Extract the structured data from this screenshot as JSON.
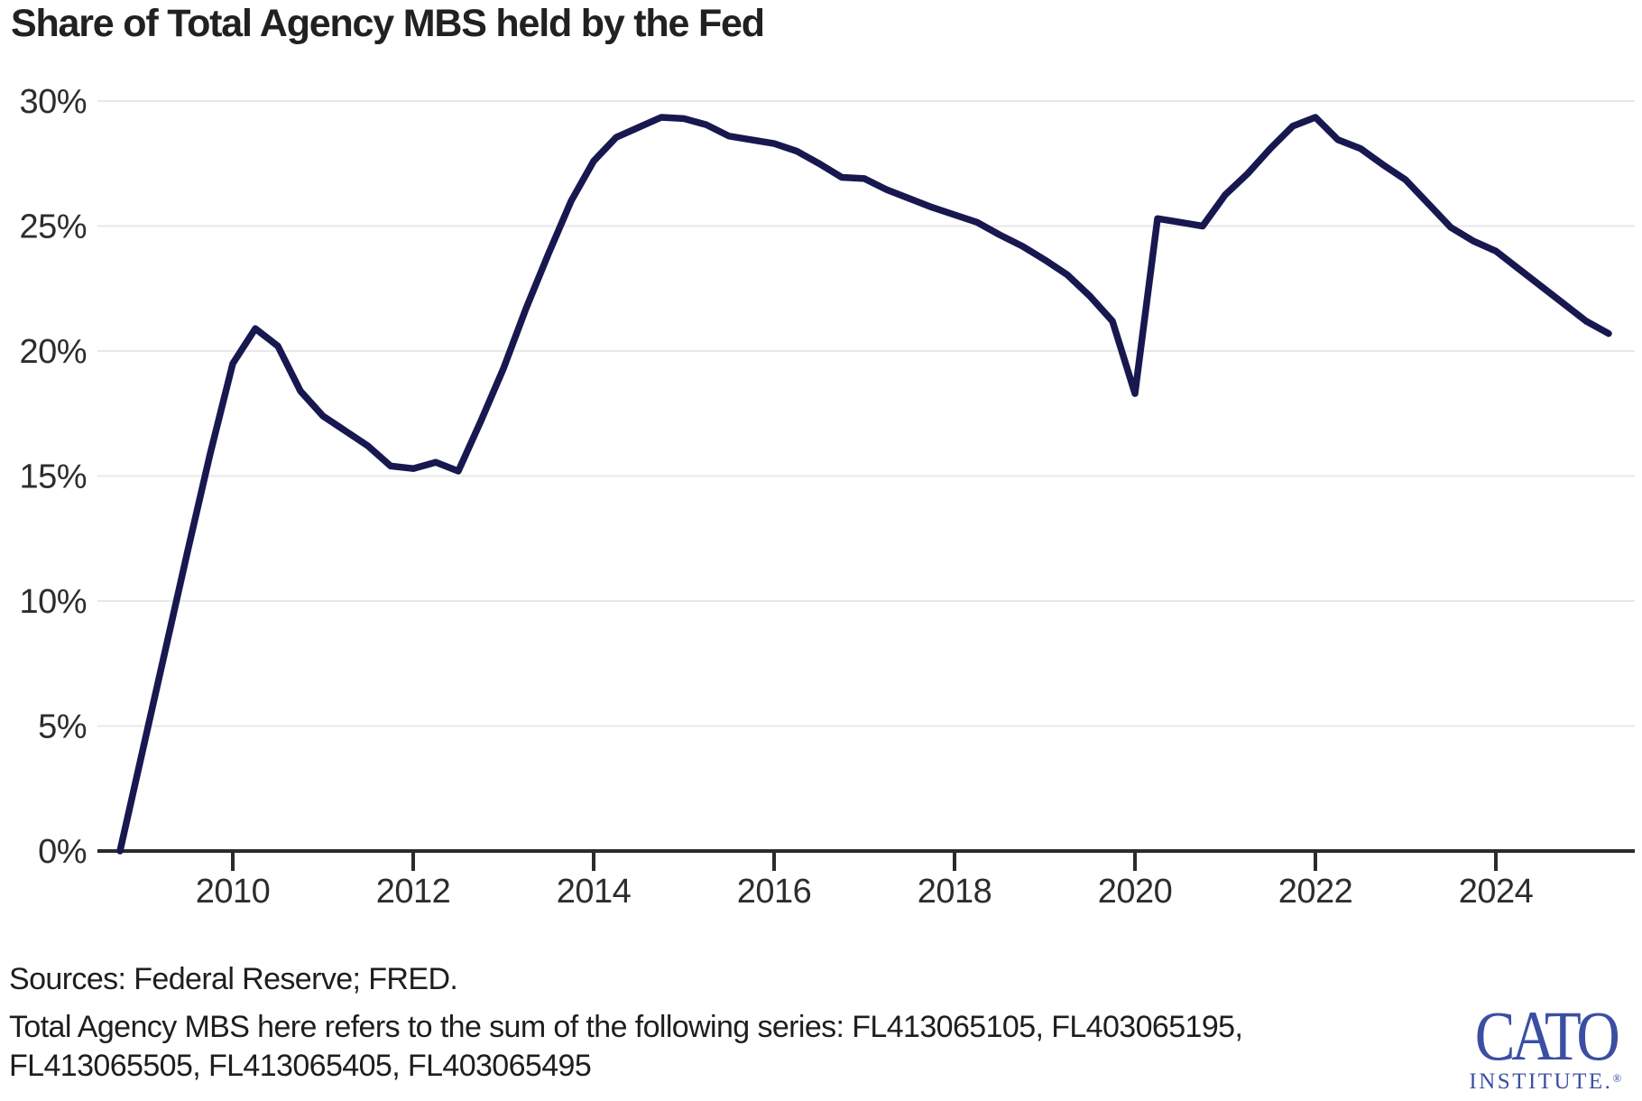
{
  "chart_data": {
    "type": "line",
    "title": "Share of Total Agency MBS held by the Fed",
    "series": [
      {
        "name": "Fed share of total agency MBS (%)",
        "x": [
          2008.75,
          2009.0,
          2009.25,
          2009.5,
          2009.75,
          2010.0,
          2010.25,
          2010.5,
          2010.75,
          2011.0,
          2011.25,
          2011.5,
          2011.75,
          2012.0,
          2012.25,
          2012.5,
          2012.75,
          2013.0,
          2013.25,
          2013.5,
          2013.75,
          2014.0,
          2014.25,
          2014.5,
          2014.75,
          2015.0,
          2015.25,
          2015.5,
          2015.75,
          2016.0,
          2016.25,
          2016.5,
          2016.75,
          2017.0,
          2017.25,
          2017.5,
          2017.75,
          2018.0,
          2018.25,
          2018.5,
          2018.75,
          2019.0,
          2019.25,
          2019.5,
          2019.75,
          2020.0,
          2020.25,
          2020.5,
          2020.75,
          2021.0,
          2021.25,
          2021.5,
          2021.75,
          2022.0,
          2022.25,
          2022.5,
          2022.75,
          2023.0,
          2023.25,
          2023.5,
          2023.75,
          2024.0,
          2024.25,
          2024.5,
          2024.75,
          2025.0,
          2025.25
        ],
        "values": [
          0.0,
          4.0,
          8.0,
          12.0,
          15.9,
          19.5,
          20.9,
          20.2,
          18.4,
          17.4,
          16.8,
          16.2,
          15.4,
          15.3,
          15.55,
          15.2,
          17.2,
          19.3,
          21.7,
          23.9,
          26.0,
          27.6,
          28.55,
          28.95,
          29.35,
          29.3,
          29.05,
          28.6,
          28.45,
          28.3,
          28.0,
          27.5,
          26.95,
          26.9,
          26.45,
          26.1,
          25.75,
          25.45,
          25.15,
          24.65,
          24.2,
          23.65,
          23.05,
          22.2,
          21.2,
          18.3,
          25.3,
          25.15,
          25.0,
          26.25,
          27.1,
          28.1,
          29.0,
          29.35,
          28.45,
          28.1,
          27.45,
          26.85,
          25.9,
          24.95,
          24.4,
          24.0,
          23.3,
          22.6,
          21.9,
          21.2,
          20.7
        ]
      }
    ],
    "x_ticks": [
      2010,
      2012,
      2014,
      2016,
      2018,
      2020,
      2022,
      2024
    ],
    "y_ticks": [
      0,
      5,
      10,
      15,
      20,
      25,
      30
    ],
    "y_tick_suffix": "%",
    "xlim": [
      2008.5,
      2025.54
    ],
    "ylim": [
      0,
      30
    ],
    "grid": "horizontal",
    "legend": "none",
    "line_color": "#181850",
    "grid_color": "#e8e8e8",
    "axis_color": "#2b2b2b",
    "tick_label_color": "#2d2d2d"
  },
  "notes": {
    "sources": "Sources: Federal Reserve; FRED.",
    "note_line1": "Total Agency MBS here refers to the sum of the following series: FL413065105, FL403065195,",
    "note_line2": "FL413065505, FL413065405, FL403065495"
  },
  "logo": {
    "wordmark": "CATO",
    "subtext": "INSTITUTE.",
    "registered": "®",
    "color": "#3b4fa2"
  }
}
